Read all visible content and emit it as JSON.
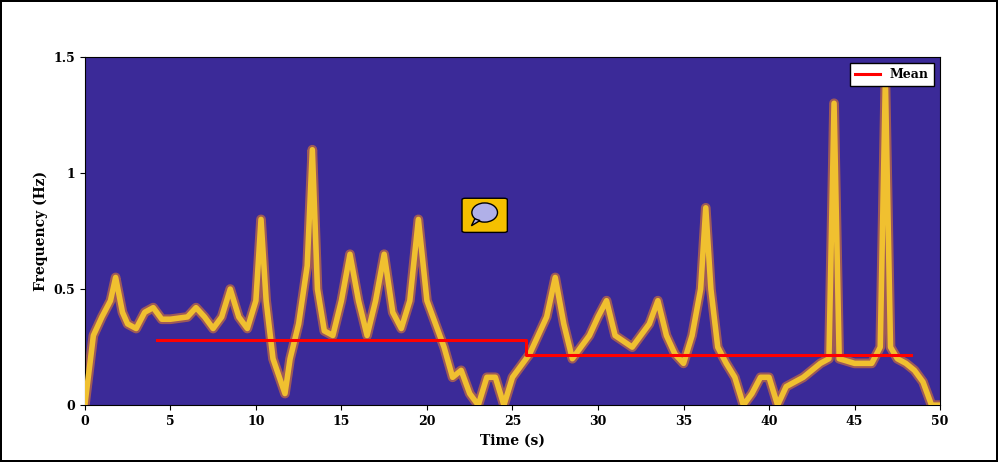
{
  "chart_data": {
    "type": "line",
    "xlabel": "Time (s)",
    "ylabel": "Frequency (Hz)",
    "xlim": [
      0,
      50
    ],
    "xticks": [
      0,
      5,
      10,
      15,
      20,
      25,
      30,
      35,
      40,
      45,
      50
    ],
    "ylim": [
      0,
      1.5
    ],
    "yticks": [
      0,
      0.5,
      1,
      1.5
    ],
    "legend": "upper right",
    "series": [
      {
        "color": "#f0c030",
        "line_style": "solid",
        "x": [
          0,
          0.5,
          1,
          1.5,
          1.8,
          2.2,
          2.5,
          3,
          3.5,
          4,
          4.5,
          5,
          6,
          6.5,
          7,
          7.5,
          8,
          8.5,
          9,
          9.5,
          10,
          10.3,
          10.6,
          11,
          11.7,
          12,
          12.5,
          13,
          13.3,
          13.6,
          14,
          14.5,
          15,
          15.5,
          16,
          16.5,
          17,
          17.5,
          18,
          18.5,
          19,
          19.5,
          20,
          20.5,
          21,
          21.5,
          22,
          22.5,
          23,
          23.5,
          24,
          24.5,
          25,
          25.5,
          26,
          26.5,
          27,
          27.5,
          28,
          28.5,
          29,
          29.5,
          30,
          30.5,
          31,
          32,
          33,
          33.5,
          34,
          34.5,
          35,
          35.5,
          36,
          36.3,
          36.6,
          37,
          37.5,
          38,
          38.5,
          39,
          39.5,
          40,
          40.5,
          41,
          41.5,
          42,
          42.5,
          43,
          43.5,
          43.8,
          44.1,
          45,
          46,
          46.5,
          46.8,
          47.1,
          47.5,
          48,
          48.5,
          49,
          49.5,
          50
        ],
        "values": [
          0,
          0.3,
          0.38,
          0.45,
          0.55,
          0.4,
          0.35,
          0.33,
          0.4,
          0.42,
          0.37,
          0.37,
          0.38,
          0.42,
          0.38,
          0.33,
          0.38,
          0.5,
          0.38,
          0.33,
          0.45,
          0.8,
          0.45,
          0.2,
          0.05,
          0.2,
          0.35,
          0.6,
          1.1,
          0.5,
          0.32,
          0.3,
          0.45,
          0.65,
          0.45,
          0.3,
          0.45,
          0.65,
          0.4,
          0.33,
          0.45,
          0.8,
          0.45,
          0.35,
          0.25,
          0.12,
          0.15,
          0.05,
          0,
          0.12,
          0.12,
          0,
          0.12,
          0.17,
          0.22,
          0.3,
          0.38,
          0.55,
          0.35,
          0.2,
          0.25,
          0.3,
          0.38,
          0.45,
          0.3,
          0.25,
          0.35,
          0.45,
          0.3,
          0.22,
          0.18,
          0.3,
          0.5,
          0.85,
          0.5,
          0.25,
          0.18,
          0.12,
          0,
          0.05,
          0.12,
          0.12,
          0,
          0.08,
          0.1,
          0.12,
          0.15,
          0.18,
          0.2,
          1.3,
          0.2,
          0.18,
          0.18,
          0.25,
          1.4,
          0.25,
          0.2,
          0.18,
          0.15,
          0.1,
          0,
          0
        ]
      },
      {
        "name": "Mean",
        "color": "#ff0000",
        "line_style": "solid",
        "x": [
          4.2,
          25.8,
          25.8,
          48.3
        ],
        "values": [
          0.28,
          0.28,
          0.215,
          0.215
        ]
      }
    ]
  }
}
